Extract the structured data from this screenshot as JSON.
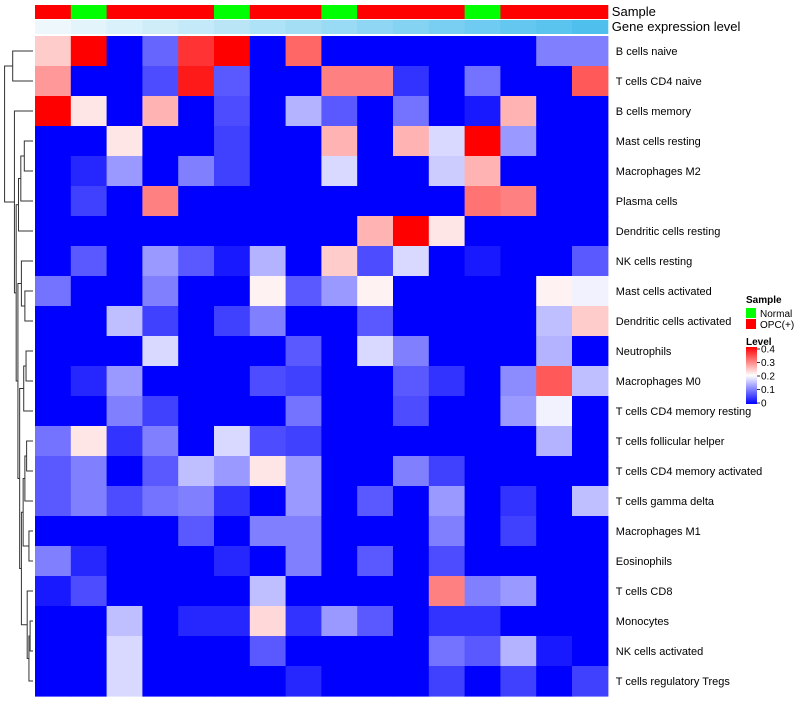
{
  "chart_data": {
    "type": "heatmap",
    "annotation_labels": [
      "Sample",
      "Gene expression level"
    ],
    "sample_groups": [
      "OPC(+)",
      "Normal",
      "OPC(+)",
      "OPC(+)",
      "OPC(+)",
      "Normal",
      "OPC(+)",
      "OPC(+)",
      "Normal",
      "OPC(+)",
      "OPC(+)",
      "OPC(+)",
      "Normal",
      "OPC(+)",
      "OPC(+)",
      "OPC(+)"
    ],
    "expression_levels": [
      0.04,
      0.08,
      0.12,
      0.16,
      0.2,
      0.24,
      0.28,
      0.32,
      0.36,
      0.4,
      0.44,
      0.48,
      0.52,
      0.56,
      0.6,
      0.64
    ],
    "rows": [
      "B cells naive",
      "T cells CD4 naive",
      "B cells memory",
      "Mast cells resting",
      "Macrophages M2",
      "Plasma cells",
      "Dendritic cells resting",
      "NK cells resting",
      "Mast cells activated",
      "Dendritic cells activated",
      "Neutrophils",
      "Macrophages M0",
      "T cells CD4 memory resting",
      "T cells follicular helper",
      "T cells CD4 memory activated",
      "T cells gamma delta",
      "Macrophages M1",
      "Eosinophils",
      "T cells CD8",
      "Monocytes",
      "NK cells activated",
      "T cells regulatory  Tregs"
    ],
    "values": [
      [
        0.24,
        0.4,
        0.0,
        0.08,
        0.36,
        0.4,
        0.0,
        0.32,
        0.0,
        0.0,
        0.0,
        0.0,
        0.0,
        0.0,
        0.1,
        0.1
      ],
      [
        0.28,
        0.0,
        0.0,
        0.06,
        0.38,
        0.07,
        0.0,
        0.0,
        0.3,
        0.3,
        0.04,
        0.0,
        0.09,
        0.0,
        0.0,
        0.33
      ],
      [
        0.4,
        0.22,
        0.0,
        0.26,
        0.0,
        0.06,
        0.0,
        0.14,
        0.07,
        0.0,
        0.09,
        0.0,
        0.02,
        0.26,
        0.0,
        0.0
      ],
      [
        0.0,
        0.0,
        0.22,
        0.0,
        0.0,
        0.05,
        0.0,
        0.0,
        0.26,
        0.0,
        0.26,
        0.17,
        0.4,
        0.12,
        0.0,
        0.0
      ],
      [
        0.0,
        0.03,
        0.12,
        0.0,
        0.1,
        0.05,
        0.0,
        0.0,
        0.17,
        0.0,
        0.0,
        0.16,
        0.26,
        0.0,
        0.0,
        0.0
      ],
      [
        0.0,
        0.05,
        0.0,
        0.3,
        0.0,
        0.0,
        0.0,
        0.0,
        0.0,
        0.0,
        0.0,
        0.0,
        0.31,
        0.3,
        0.0,
        0.0
      ],
      [
        0.0,
        0.0,
        0.0,
        0.0,
        0.0,
        0.0,
        0.0,
        0.0,
        0.0,
        0.26,
        0.4,
        0.22,
        0.0,
        0.0,
        0.0,
        0.0
      ],
      [
        0.0,
        0.07,
        0.0,
        0.12,
        0.07,
        0.02,
        0.14,
        0.0,
        0.24,
        0.06,
        0.17,
        0.0,
        0.02,
        0.0,
        0.0,
        0.07
      ],
      [
        0.09,
        0.0,
        0.0,
        0.1,
        0.0,
        0.0,
        0.21,
        0.07,
        0.12,
        0.21,
        0.0,
        0.0,
        0.0,
        0.0,
        0.21,
        0.19
      ],
      [
        0.0,
        0.0,
        0.15,
        0.05,
        0.0,
        0.05,
        0.1,
        0.0,
        0.0,
        0.07,
        0.0,
        0.0,
        0.0,
        0.0,
        0.15,
        0.24
      ],
      [
        0.0,
        0.0,
        0.0,
        0.17,
        0.0,
        0.0,
        0.0,
        0.07,
        0.0,
        0.17,
        0.1,
        0.0,
        0.0,
        0.0,
        0.14,
        0.0
      ],
      [
        0.0,
        0.03,
        0.12,
        0.0,
        0.0,
        0.0,
        0.06,
        0.05,
        0.0,
        0.0,
        0.07,
        0.04,
        0.0,
        0.11,
        0.33,
        0.15
      ],
      [
        0.0,
        0.0,
        0.1,
        0.05,
        0.0,
        0.0,
        0.0,
        0.09,
        0.0,
        0.0,
        0.06,
        0.0,
        0.0,
        0.12,
        0.19,
        0.0
      ],
      [
        0.09,
        0.22,
        0.04,
        0.1,
        0.0,
        0.17,
        0.06,
        0.05,
        0.0,
        0.0,
        0.0,
        0.0,
        0.0,
        0.0,
        0.14,
        0.0
      ],
      [
        0.07,
        0.1,
        0.0,
        0.07,
        0.15,
        0.12,
        0.22,
        0.12,
        0.0,
        0.0,
        0.1,
        0.05,
        0.0,
        0.0,
        0.0,
        0.0
      ],
      [
        0.07,
        0.1,
        0.06,
        0.09,
        0.1,
        0.04,
        0.0,
        0.12,
        0.0,
        0.07,
        0.0,
        0.12,
        0.0,
        0.04,
        0.0,
        0.15
      ],
      [
        0.0,
        0.0,
        0.0,
        0.0,
        0.07,
        0.0,
        0.1,
        0.1,
        0.0,
        0.0,
        0.0,
        0.1,
        0.0,
        0.05,
        0.0,
        0.0
      ],
      [
        0.1,
        0.03,
        0.0,
        0.0,
        0.0,
        0.03,
        0.0,
        0.1,
        0.0,
        0.07,
        0.0,
        0.06,
        0.0,
        0.0,
        0.0,
        0.0
      ],
      [
        0.02,
        0.06,
        0.0,
        0.0,
        0.0,
        0.0,
        0.15,
        0.0,
        0.0,
        0.0,
        0.0,
        0.3,
        0.1,
        0.12,
        0.0,
        0.0
      ],
      [
        0.0,
        0.0,
        0.15,
        0.0,
        0.03,
        0.03,
        0.23,
        0.04,
        0.12,
        0.07,
        0.0,
        0.04,
        0.04,
        0.0,
        0.0,
        0.0
      ],
      [
        0.0,
        0.0,
        0.17,
        0.0,
        0.0,
        0.0,
        0.07,
        0.0,
        0.0,
        0.0,
        0.0,
        0.09,
        0.07,
        0.14,
        0.02,
        0.0
      ],
      [
        0.0,
        0.0,
        0.17,
        0.0,
        0.0,
        0.0,
        0.0,
        0.03,
        0.0,
        0.0,
        0.0,
        0.05,
        0.0,
        0.05,
        0.0,
        0.05
      ]
    ],
    "legend": {
      "sample_title": "Sample",
      "sample_entries": [
        {
          "label": "Normal",
          "color": "#00ff00"
        },
        {
          "label": "OPC(+)",
          "color": "#ff0000"
        }
      ],
      "level_title": "Level",
      "level_ticks": [
        "0.4",
        "0.3",
        "0.2",
        "0.1",
        "0"
      ],
      "level_range": [
        0,
        0.4
      ]
    },
    "colors": {
      "low": "#0000ff",
      "mid": "#ffffff",
      "high": "#ff0000",
      "expr_low": "#eef8fc",
      "expr_high": "#4fc0ee"
    }
  }
}
